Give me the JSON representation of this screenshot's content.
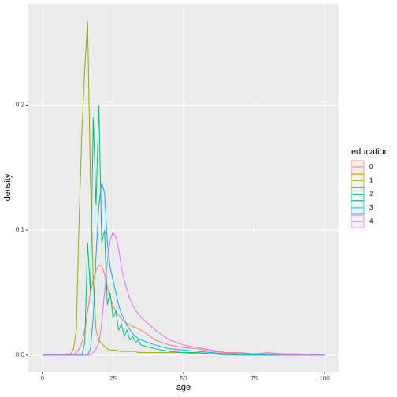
{
  "chart_data": {
    "type": "line",
    "x_label": "age",
    "y_label": "density",
    "legend_title": "education",
    "x": [
      0,
      5,
      10,
      11,
      12,
      13,
      14,
      15,
      16,
      17,
      18,
      19,
      20,
      21,
      22,
      23,
      24,
      25,
      26,
      27,
      28,
      29,
      30,
      31,
      32,
      33,
      34,
      35,
      40,
      45,
      50,
      55,
      60,
      65,
      70,
      75,
      80,
      85,
      90,
      95,
      100
    ],
    "series": [
      {
        "name": "0",
        "color": "#F8766D",
        "values": [
          0,
          0,
          0,
          0.001,
          0.002,
          0.005,
          0.01,
          0.02,
          0.035,
          0.05,
          0.06,
          0.068,
          0.072,
          0.071,
          0.065,
          0.055,
          0.045,
          0.04,
          0.035,
          0.032,
          0.029,
          0.027,
          0.025,
          0.024,
          0.023,
          0.022,
          0.021,
          0.02,
          0.012,
          0.008,
          0.006,
          0.005,
          0.003,
          0.002,
          0.002,
          0.001,
          0.002,
          0.001,
          0.001,
          0,
          0
        ]
      },
      {
        "name": "1",
        "color": "#A3A500",
        "values": [
          0,
          0,
          0.001,
          0.005,
          0.02,
          0.11,
          0.18,
          0.23,
          0.267,
          0.14,
          0.06,
          0.02,
          0.012,
          0.009,
          0.007,
          0.005,
          0.004,
          0.004,
          0.004,
          0.003,
          0.003,
          0.003,
          0.003,
          0.003,
          0.003,
          0.003,
          0.002,
          0.002,
          0.002,
          0.002,
          0.002,
          0.001,
          0.001,
          0.001,
          0.001,
          0,
          0,
          0,
          0,
          0,
          0
        ]
      },
      {
        "name": "2",
        "color": "#00BF7D",
        "values": [
          0,
          0,
          0,
          0,
          0,
          0,
          0,
          0.01,
          0.09,
          0.05,
          0.19,
          0.12,
          0.2,
          0.09,
          0.1,
          0.04,
          0.05,
          0.03,
          0.035,
          0.02,
          0.025,
          0.015,
          0.02,
          0.012,
          0.015,
          0.01,
          0.012,
          0.008,
          0.005,
          0.003,
          0.002,
          0.002,
          0.001,
          0,
          0,
          0,
          0,
          0,
          0,
          0,
          0
        ]
      },
      {
        "name": "3",
        "color": "#00B0F6",
        "values": [
          0,
          0,
          0,
          0,
          0,
          0,
          0,
          0,
          0,
          0.005,
          0.03,
          0.08,
          0.12,
          0.138,
          0.13,
          0.09,
          0.07,
          0.06,
          0.05,
          0.04,
          0.033,
          0.028,
          0.024,
          0.02,
          0.017,
          0.015,
          0.013,
          0.012,
          0.008,
          0.005,
          0.004,
          0.003,
          0.002,
          0.001,
          0,
          0,
          0,
          0,
          0,
          0,
          0
        ]
      },
      {
        "name": "4",
        "color": "#E76BF3",
        "values": [
          0,
          0,
          0,
          0,
          0,
          0,
          0,
          0,
          0,
          0,
          0.002,
          0.005,
          0.01,
          0.025,
          0.05,
          0.075,
          0.092,
          0.098,
          0.095,
          0.085,
          0.07,
          0.06,
          0.052,
          0.045,
          0.04,
          0.036,
          0.033,
          0.03,
          0.02,
          0.012,
          0.008,
          0.006,
          0.004,
          0.002,
          0.001,
          0.001,
          0.001,
          0,
          0,
          0,
          0
        ]
      }
    ],
    "xlim": [
      -5,
      105
    ],
    "xticks": [
      0,
      25,
      50,
      75,
      100
    ],
    "ylim": [
      -0.0134,
      0.281
    ],
    "yticks": [
      {
        "value": 0,
        "label": "0.0"
      },
      {
        "value": 0.1,
        "label": "0.1"
      },
      {
        "value": 0.2,
        "label": "0.2"
      }
    ],
    "grid": true,
    "legend": "right"
  }
}
